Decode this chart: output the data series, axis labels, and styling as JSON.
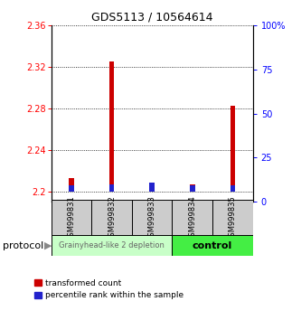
{
  "title": "GDS5113 / 10564614",
  "samples": [
    "GSM999831",
    "GSM999832",
    "GSM999833",
    "GSM999834",
    "GSM999835"
  ],
  "red_values": [
    2.213,
    2.325,
    2.2,
    2.207,
    2.283
  ],
  "blue_values_pct": [
    3.5,
    4.0,
    5.0,
    3.5,
    3.5
  ],
  "ylim_left": [
    2.19,
    2.36
  ],
  "ylim_right": [
    0,
    100
  ],
  "yticks_left": [
    2.2,
    2.24,
    2.28,
    2.32,
    2.36
  ],
  "yticks_right": [
    0,
    25,
    50,
    75,
    100
  ],
  "ytick_labels_left": [
    "2.2",
    "2.24",
    "2.28",
    "2.32",
    "2.36"
  ],
  "ytick_labels_right": [
    "0",
    "25",
    "50",
    "75",
    "100%"
  ],
  "group1_label": "Grainyhead-like 2 depletion",
  "group2_label": "control",
  "group1_color": "#c8ffc8",
  "group2_color": "#44ee44",
  "gray_box_color": "#cccccc",
  "red_bar_color": "#cc0000",
  "blue_bar_color": "#2222cc",
  "base_value": 2.2,
  "legend_red": "transformed count",
  "legend_blue": "percentile rank within the sample",
  "protocol_label": "protocol"
}
